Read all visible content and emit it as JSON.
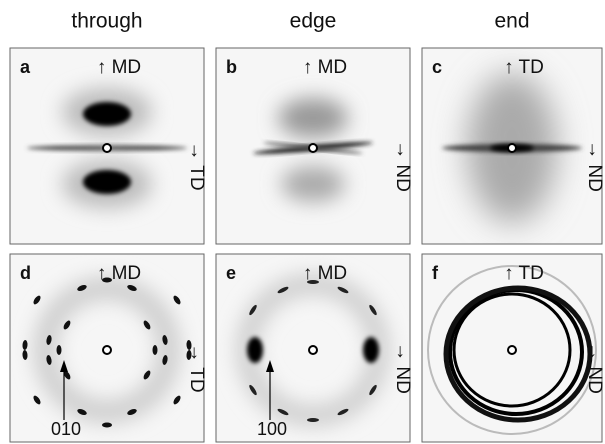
{
  "columns": [
    "through",
    "edge",
    "end"
  ],
  "panels": [
    {
      "letter": "a",
      "top": "↑ MD",
      "side": "→ TD"
    },
    {
      "letter": "b",
      "top": "↑ MD",
      "side": "→ ND"
    },
    {
      "letter": "c",
      "top": "↑ TD",
      "side": "→ ND"
    },
    {
      "letter": "d",
      "top": "↑ MD",
      "side": "→ TD",
      "annotation": "010"
    },
    {
      "letter": "e",
      "top": "↑ MD",
      "side": "→ ND",
      "annotation": "100"
    },
    {
      "letter": "f",
      "top": "↑ TD",
      "side": "→ ND"
    }
  ]
}
